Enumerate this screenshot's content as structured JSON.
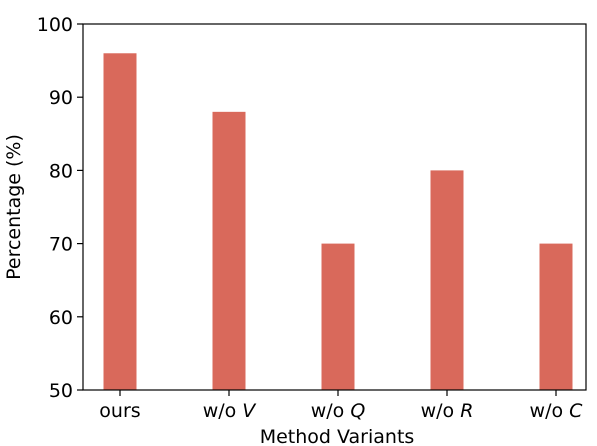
{
  "chart_data": {
    "type": "bar",
    "title": "",
    "xlabel": "Method Variants",
    "ylabel": "Percentage (%)",
    "ylim": [
      50,
      100
    ],
    "yticks": [
      50,
      60,
      70,
      80,
      90,
      100
    ],
    "grid": false,
    "legend": "none",
    "categories": [
      {
        "prefix": "ours",
        "italic": ""
      },
      {
        "prefix": "w/o ",
        "italic": "V"
      },
      {
        "prefix": "w/o ",
        "italic": "Q"
      },
      {
        "prefix": "w/o ",
        "italic": "R"
      },
      {
        "prefix": "w/o ",
        "italic": "C"
      }
    ],
    "values": [
      96,
      88,
      70,
      80,
      70
    ],
    "bar_color": "#d9695b"
  }
}
